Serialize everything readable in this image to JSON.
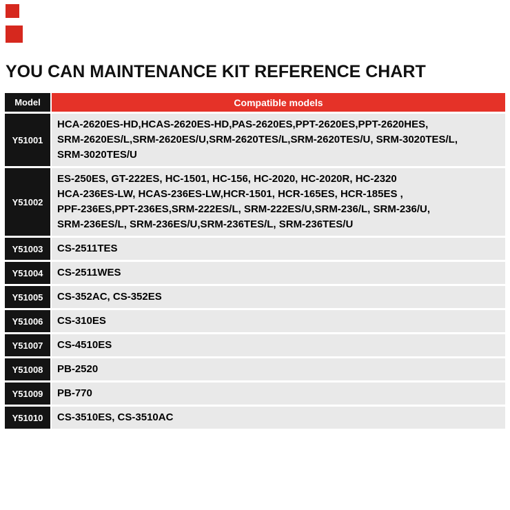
{
  "title": "YOU CAN MAINTENANCE KIT REFERENCE CHART",
  "colors": {
    "accent_red": "#e53228",
    "decoration_square_red": "#d6281e",
    "header_black": "#141414",
    "row_gray": "#e9e9e9"
  },
  "table": {
    "headers": {
      "model": "Model",
      "compatible": "Compatible models"
    },
    "rows": [
      {
        "model": "Y51001",
        "compatible": "HCA-2620ES-HD,HCAS-2620ES-HD,PAS-2620ES,PPT-2620ES,PPT-2620HES,\nSRM-2620ES/L,SRM-2620ES/U,SRM-2620TES/L,SRM-2620TES/U, SRM-3020TES/L,\nSRM-3020TES/U"
      },
      {
        "model": "Y51002",
        "compatible": "ES-250ES, GT-222ES, HC-1501, HC-156, HC-2020, HC-2020R, HC-2320\nHCA-236ES-LW, HCAS-236ES-LW,HCR-1501, HCR-165ES, HCR-185ES ,\nPPF-236ES,PPT-236ES,SRM-222ES/L, SRM-222ES/U,SRM-236/L, SRM-236/U,\nSRM-236ES/L, SRM-236ES/U,SRM-236TES/L, SRM-236TES/U"
      },
      {
        "model": "Y51003",
        "compatible": "CS-2511TES"
      },
      {
        "model": "Y51004",
        "compatible": "CS-2511WES"
      },
      {
        "model": "Y51005",
        "compatible": "CS-352AC, CS-352ES"
      },
      {
        "model": "Y51006",
        "compatible": "CS-310ES"
      },
      {
        "model": "Y51007",
        "compatible": "CS-4510ES"
      },
      {
        "model": "Y51008",
        "compatible": "PB-2520"
      },
      {
        "model": "Y51009",
        "compatible": "PB-770"
      },
      {
        "model": "Y51010",
        "compatible": "CS-3510ES, CS-3510AC"
      }
    ]
  }
}
